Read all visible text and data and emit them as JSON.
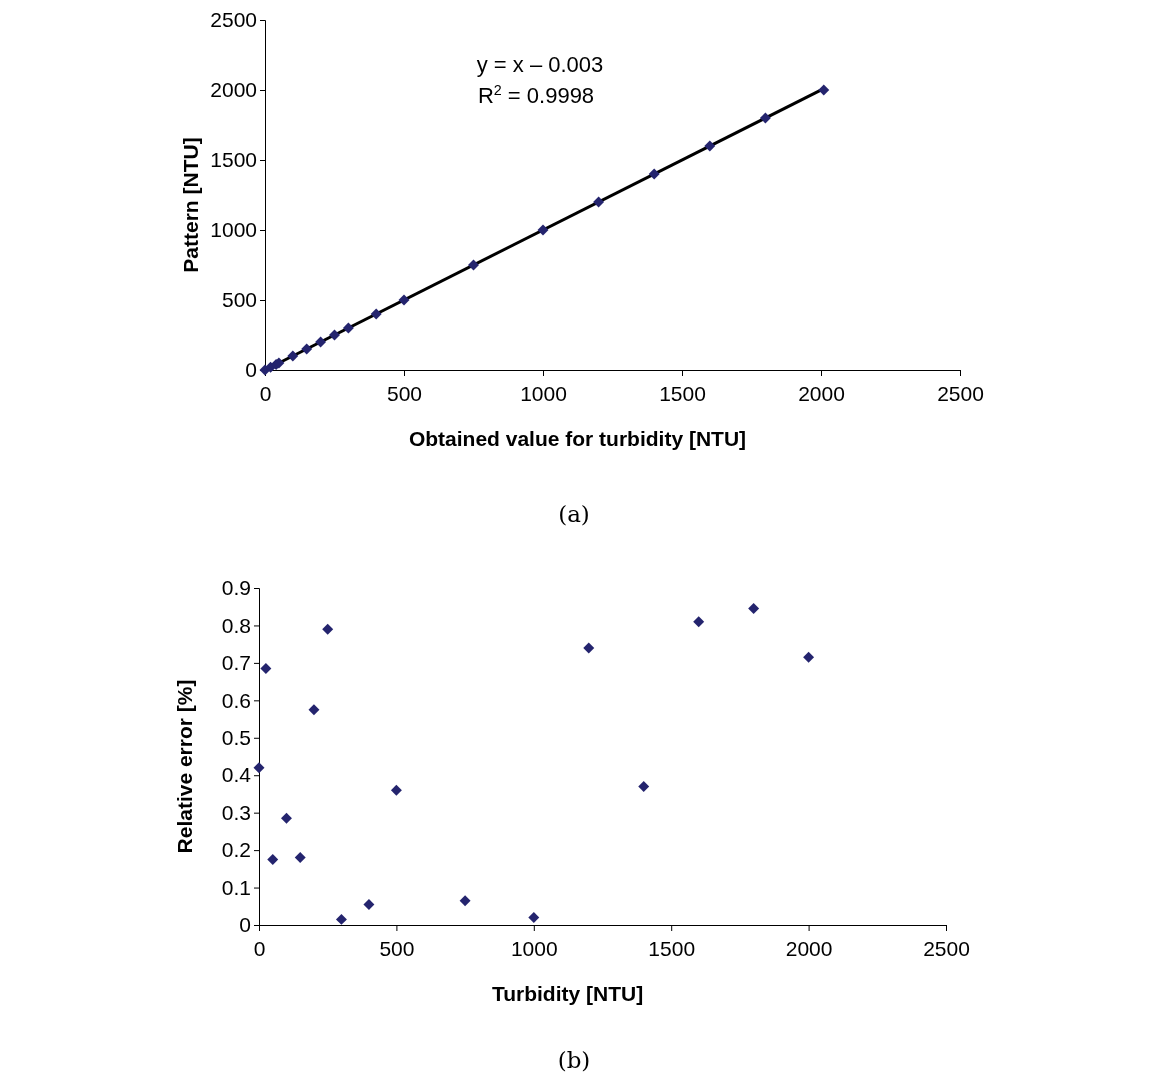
{
  "chart_data": [
    {
      "type": "scatter",
      "xlabel": "Obtained value for turbidity [NTU]",
      "ylabel": "Pattern [NTU]",
      "xlim": [
        0,
        2500
      ],
      "ylim": [
        0,
        2500
      ],
      "xticks": [
        0,
        500,
        1000,
        1500,
        2000,
        2500
      ],
      "yticks": [
        0,
        500,
        1000,
        1500,
        2000,
        2500
      ],
      "grid": false,
      "marker": "diamond",
      "annotations": [
        "y = x – 0.003",
        "R$^{2}$ = 0.9998",
        "(a)"
      ],
      "series": [
        {
          "color": "#24246e",
          "x": [
            0,
            20,
            40,
            50,
            100,
            150,
            200,
            250,
            300,
            400,
            500,
            750,
            1000,
            1200,
            1400,
            1600,
            1800,
            2010
          ],
          "values": [
            0,
            20,
            40,
            50,
            100,
            150,
            200,
            250,
            300,
            400,
            500,
            750,
            1000,
            1200,
            1400,
            1600,
            1800,
            2000
          ]
        },
        {
          "type": "line",
          "marker": "none",
          "color": "#000000",
          "line_style": "solid",
          "x": [
            0,
            2010
          ],
          "values": [
            0,
            2010
          ]
        }
      ]
    },
    {
      "type": "scatter",
      "xlabel": "Turbidity [NTU]",
      "ylabel": "Relative error [%]",
      "xlim": [
        0,
        2500
      ],
      "ylim": [
        0,
        0.9
      ],
      "xticks": [
        0,
        500,
        1000,
        1500,
        2000,
        2500
      ],
      "yticks": [
        0,
        0.1,
        0.2,
        0.3,
        0.4,
        0.5,
        0.6,
        0.7,
        0.8,
        0.9
      ],
      "grid": false,
      "marker": "diamond",
      "annotations": [
        "(b)"
      ],
      "series": [
        {
          "color": "#24246e",
          "x": [
            0,
            25,
            50,
            100,
            150,
            200,
            250,
            300,
            400,
            500,
            750,
            1000,
            1200,
            1400,
            1600,
            1800,
            2000
          ],
          "values": [
            0.42,
            0.685,
            0.175,
            0.285,
            0.18,
            0.575,
            0.79,
            0.015,
            0.055,
            0.36,
            0.065,
            0.02,
            0.74,
            0.37,
            0.81,
            0.845,
            0.715
          ]
        }
      ]
    }
  ]
}
